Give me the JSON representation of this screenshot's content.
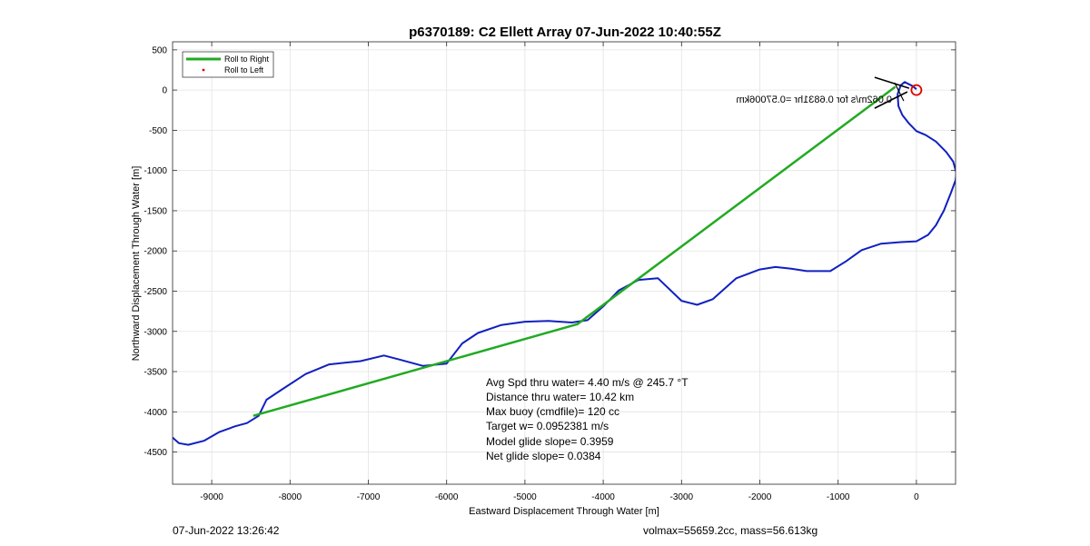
{
  "chart_data": {
    "type": "line",
    "title": "p6370189: C2 Ellett Array 07-Jun-2022 10:40:55Z",
    "xlabel": "Eastward Displacement Through Water [m]",
    "ylabel": "Northward Displacement Through Water [m]",
    "xlim": [
      -9500,
      500
    ],
    "ylim": [
      -4900,
      600
    ],
    "grid": true,
    "x_ticks": [
      -9000,
      -8000,
      -7000,
      -6000,
      -5000,
      -4000,
      -3000,
      -2000,
      -1000,
      0
    ],
    "y_ticks": [
      500,
      0,
      -500,
      -1000,
      -1500,
      -2000,
      -2500,
      -3000,
      -3500,
      -4000,
      -4500
    ],
    "x_tick_labels": [
      "-9000",
      "-8000",
      "-7000",
      "-6000",
      "-5000",
      "-4000",
      "-3000",
      "-2000",
      "-1000",
      "0"
    ],
    "y_tick_labels": [
      "500",
      "0",
      "-500",
      "-1000",
      "-1500",
      "-2000",
      "-2500",
      "-3000",
      "-3500",
      "-4000",
      "-4500"
    ],
    "legend_position": "top-left",
    "series": [
      {
        "name": "Roll to Right",
        "color": "#22aa22",
        "x": [
          -8470,
          -4330,
          -270
        ],
        "y": [
          -4050,
          -2910,
          40
        ]
      },
      {
        "name": "Roll to Left",
        "color": "#dd0000",
        "x": [],
        "y": []
      },
      {
        "color": "#1020c0",
        "x": [
          -9500,
          -9420,
          -9300,
          -9100,
          -8900,
          -8700,
          -8550,
          -8400,
          -8300,
          -8100,
          -7800,
          -7500,
          -7100,
          -6800,
          -6600,
          -6300,
          -6000,
          -5800,
          -5600,
          -5300,
          -5000,
          -4700,
          -4400,
          -4200,
          -4000,
          -3800,
          -3550,
          -3300,
          -3000,
          -2800,
          -2600,
          -2300,
          -2000,
          -1800,
          -1600,
          -1400,
          -1100,
          -900,
          -700,
          -450,
          -200,
          0,
          150,
          250,
          350,
          440,
          500,
          510,
          470,
          380,
          250,
          120,
          0,
          -100,
          -180,
          -230,
          -240,
          -200,
          -150,
          -50,
          0
        ],
        "y": [
          -4320,
          -4390,
          -4410,
          -4360,
          -4250,
          -4180,
          -4140,
          -4050,
          -3850,
          -3720,
          -3530,
          -3410,
          -3370,
          -3300,
          -3350,
          -3430,
          -3400,
          -3150,
          -3020,
          -2920,
          -2880,
          -2870,
          -2890,
          -2860,
          -2690,
          -2490,
          -2360,
          -2340,
          -2620,
          -2670,
          -2600,
          -2340,
          -2230,
          -2200,
          -2220,
          -2250,
          -2250,
          -2130,
          -1990,
          -1910,
          -1890,
          -1880,
          -1800,
          -1680,
          -1500,
          -1280,
          -1120,
          -1030,
          -890,
          -770,
          -640,
          -560,
          -510,
          -410,
          -310,
          -200,
          -50,
          60,
          100,
          50,
          10
        ]
      }
    ],
    "markers": [
      {
        "label": "Start circle",
        "x": 0,
        "y": 0,
        "color": "#dd0000"
      }
    ],
    "mirrored_annotation": "0.062m/s for 0.6831hr =0.57006km",
    "stats": [
      "Avg Spd thru water=  4.40 m/s @ 245.7 °T",
      "Distance thru water= 10.42 km",
      "Max buoy (cmdfile)= 120 cc",
      "Target w= 0.0952381 m/s",
      "Model glide slope= 0.3959",
      "Net glide slope= 0.0384"
    ]
  },
  "footer": {
    "left": "07-Jun-2022 13:26:42",
    "right": "volmax=55659.2cc, mass=56.613kg"
  }
}
